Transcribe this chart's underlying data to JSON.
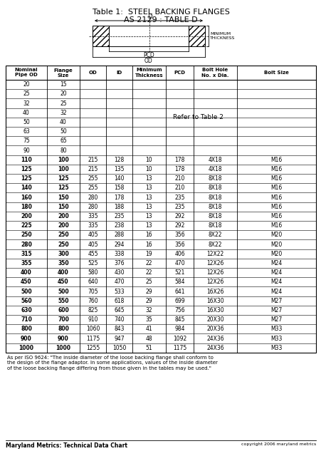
{
  "title_line1": "Table 1:  STEEL BACKING FLANGES",
  "title_line2": "AS 2129 : TABLE D",
  "footer_left": "Maryland Metrics: Technical Data Chart",
  "footer_right": "copyright 2006 maryland metrics",
  "note_line1": "As per ISO 9624: \"The inside diameter of the loose backing flange shall conform to",
  "note_line2": "the design of the flange adaptor. In some applications, values of the inside diameter",
  "note_line3": "of the loose backing flange differing from those given in the tables may be used.\"",
  "refer_text": "Refer to Table 2",
  "col_headers": [
    "Nominal\nPipe OD",
    "Flange\nSize",
    "OD",
    "ID",
    "Minimum\nThickness",
    "PCD",
    "Bolt Hole\nNo. x Dia.",
    "Bolt Size"
  ],
  "rows": [
    [
      "20",
      "15",
      "",
      "",
      "",
      "",
      "",
      ""
    ],
    [
      "25",
      "20",
      "",
      "",
      "",
      "",
      "",
      ""
    ],
    [
      "32",
      "25",
      "",
      "",
      "",
      "",
      "",
      ""
    ],
    [
      "40",
      "32",
      "",
      "",
      "",
      "",
      "",
      ""
    ],
    [
      "50",
      "40",
      "",
      "",
      "",
      "",
      "",
      ""
    ],
    [
      "63",
      "50",
      "",
      "",
      "",
      "",
      "",
      ""
    ],
    [
      "75",
      "65",
      "",
      "",
      "",
      "",
      "",
      ""
    ],
    [
      "90",
      "80",
      "",
      "",
      "",
      "",
      "",
      ""
    ],
    [
      "110",
      "100",
      "215",
      "128",
      "10",
      "178",
      "4X18",
      "M16"
    ],
    [
      "125",
      "100",
      "215",
      "135",
      "10",
      "178",
      "4X18",
      "M16"
    ],
    [
      "125",
      "125",
      "255",
      "140",
      "13",
      "210",
      "8X18",
      "M16"
    ],
    [
      "140",
      "125",
      "255",
      "158",
      "13",
      "210",
      "8X18",
      "M16"
    ],
    [
      "160",
      "150",
      "280",
      "178",
      "13",
      "235",
      "8X18",
      "M16"
    ],
    [
      "180",
      "150",
      "280",
      "188",
      "13",
      "235",
      "8X18",
      "M16"
    ],
    [
      "200",
      "200",
      "335",
      "235",
      "13",
      "292",
      "8X18",
      "M16"
    ],
    [
      "225",
      "200",
      "335",
      "238",
      "13",
      "292",
      "8X18",
      "M16"
    ],
    [
      "250",
      "250",
      "405",
      "288",
      "16",
      "356",
      "8X22",
      "M20"
    ],
    [
      "280",
      "250",
      "405",
      "294",
      "16",
      "356",
      "8X22",
      "M20"
    ],
    [
      "315",
      "300",
      "455",
      "338",
      "19",
      "406",
      "12X22",
      "M20"
    ],
    [
      "355",
      "350",
      "525",
      "376",
      "22",
      "470",
      "12X26",
      "M24"
    ],
    [
      "400",
      "400",
      "580",
      "430",
      "22",
      "521",
      "12X26",
      "M24"
    ],
    [
      "450",
      "450",
      "640",
      "470",
      "25",
      "584",
      "12X26",
      "M24"
    ],
    [
      "500",
      "500",
      "705",
      "533",
      "29",
      "641",
      "16X26",
      "M24"
    ],
    [
      "560",
      "550",
      "760",
      "618",
      "29",
      "699",
      "16X30",
      "M27"
    ],
    [
      "630",
      "600",
      "825",
      "645",
      "32",
      "756",
      "16X30",
      "M27"
    ],
    [
      "710",
      "700",
      "910",
      "740",
      "35",
      "845",
      "20X30",
      "M27"
    ],
    [
      "800",
      "800",
      "1060",
      "843",
      "41",
      "984",
      "20X36",
      "M33"
    ],
    [
      "900",
      "900",
      "1175",
      "947",
      "48",
      "1092",
      "24X36",
      "M33"
    ],
    [
      "1000",
      "1000",
      "1255",
      "1050",
      "51",
      "1175",
      "24X36",
      "M33"
    ]
  ],
  "bold_from_row": 8,
  "bg_color": "#ffffff",
  "text_color": "#000000",
  "diagram_label_d": "D",
  "diagram_label_pcd": "PCD",
  "diagram_label_od": "OD",
  "diagram_label_min": "MINIMUM\nTHICKNESS"
}
